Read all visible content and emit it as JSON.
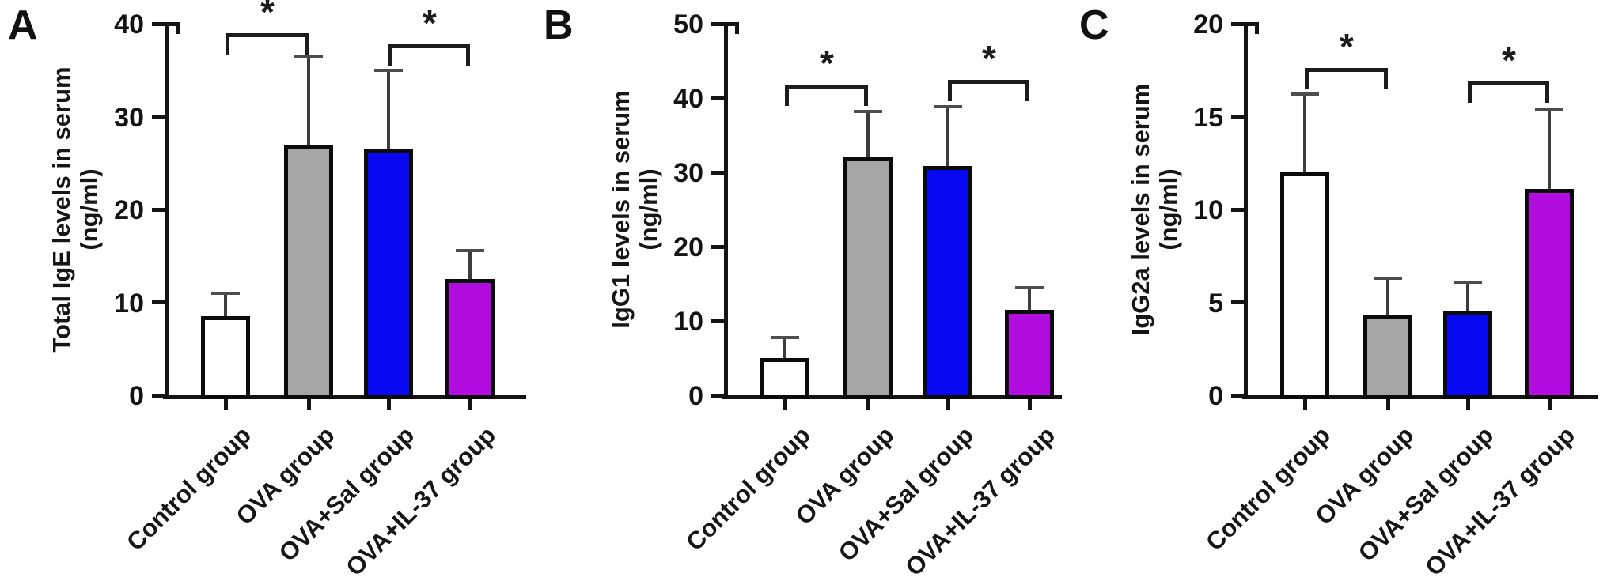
{
  "figure": {
    "units": "ng/ml",
    "groups": [
      "Control group",
      "OVA group",
      "OVA+Sal group",
      "OVA+IL-37 group"
    ],
    "group_colors": {
      "control": "#FFFFFF",
      "ova": "#A5A5A5",
      "ova_sal": "#0707F0",
      "ova_il37": "#B10DDE"
    }
  },
  "chart_data": [
    {
      "type": "bar",
      "panel_letter": "A",
      "ylabel_line1": "Total IgE levels in serum",
      "ylabel_line2": "(ng/ml)",
      "categories": [
        "Control group",
        "OVA group",
        "OVA+Sal group",
        "OVA+IL-37 group"
      ],
      "values": [
        8.5,
        27,
        26.5,
        12.5
      ],
      "sd_up": [
        2.5,
        9.5,
        8.5,
        3.1
      ],
      "bar_colors": [
        "#FFFFFF",
        "#A5A5A5",
        "#0707F0",
        "#B10DDE"
      ],
      "ylim": [
        0,
        40
      ],
      "yticks": [
        0,
        10,
        20,
        30,
        40
      ],
      "grid": false,
      "legend": "none",
      "brackets": [
        {
          "from": 0,
          "to": 1,
          "y": 39,
          "label": "*"
        },
        {
          "from": 2,
          "to": 3,
          "y": 37.8,
          "label": "*"
        }
      ]
    },
    {
      "type": "bar",
      "panel_letter": "B",
      "ylabel_line1": "IgG1 levels in serum",
      "ylabel_line2": "(ng/ml)",
      "categories": [
        "Control group",
        "OVA group",
        "OVA+Sal group",
        "OVA+IL-37 group"
      ],
      "values": [
        5,
        32,
        30.8,
        11.5
      ],
      "sd_up": [
        2.8,
        6.2,
        8,
        3
      ],
      "bar_colors": [
        "#FFFFFF",
        "#A5A5A5",
        "#0707F0",
        "#B10DDE"
      ],
      "ylim": [
        0,
        50
      ],
      "yticks": [
        0,
        10,
        20,
        30,
        40,
        50
      ],
      "grid": false,
      "legend": "none",
      "brackets": [
        {
          "from": 0,
          "to": 1,
          "y": 41.8,
          "label": "*"
        },
        {
          "from": 2,
          "to": 3,
          "y": 42.5,
          "label": "*"
        }
      ]
    },
    {
      "type": "bar",
      "panel_letter": "C",
      "ylabel_line1": "IgG2a levels in serum",
      "ylabel_line2": "(ng/ml)",
      "categories": [
        "Control group",
        "OVA group",
        "OVA+Sal group",
        "OVA+IL-37 group"
      ],
      "values": [
        12,
        4.3,
        4.5,
        11.1
      ],
      "sd_up": [
        4.2,
        2,
        1.6,
        4.3
      ],
      "bar_colors": [
        "#FFFFFF",
        "#A5A5A5",
        "#0707F0",
        "#B10DDE"
      ],
      "ylim": [
        0,
        20
      ],
      "yticks": [
        0,
        5,
        10,
        15,
        20
      ],
      "grid": false,
      "legend": "none",
      "brackets": [
        {
          "from": 0,
          "to": 1,
          "y": 17.6,
          "label": "*"
        },
        {
          "from": 2,
          "to": 3,
          "y": 16.9,
          "label": "*"
        }
      ]
    }
  ]
}
